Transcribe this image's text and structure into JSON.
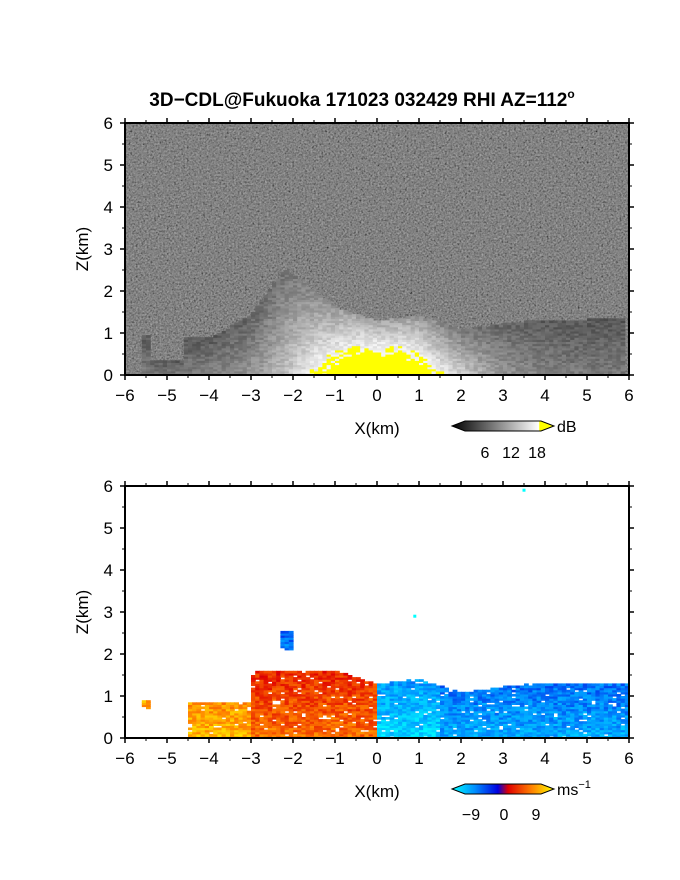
{
  "title": "3D−CDL@Fukuoka 171023 032429 RHI AZ=112",
  "title_superscript": "o",
  "chart_data": [
    {
      "type": "heatmap",
      "quantity": "SNR",
      "xlabel": "X(km)",
      "ylabel": "Z(km)",
      "xlim": [
        -6,
        6
      ],
      "ylim": [
        0,
        6
      ],
      "xticks": [
        "−6",
        "−5",
        "−4",
        "−3",
        "−2",
        "−1",
        "0",
        "1",
        "2",
        "3",
        "4",
        "5",
        "6"
      ],
      "yticks": [
        "0",
        "1",
        "2",
        "3",
        "4",
        "5",
        "6"
      ],
      "colorbar": {
        "unit": "dB",
        "ticks": [
          "6",
          "12",
          "18"
        ],
        "range": [
          0,
          21
        ],
        "colormap": "grayscale with yellow above 18",
        "saturation_color": "#ffff00"
      },
      "echo_top_km": [
        {
          "x": -5.6,
          "top": 0.95
        },
        {
          "x": -4,
          "top": 0.85
        },
        {
          "x": -3,
          "top": 1.4
        },
        {
          "x": -2.2,
          "top": 2.5
        },
        {
          "x": -1,
          "top": 1.6
        },
        {
          "x": 0,
          "top": 1.25
        },
        {
          "x": 1,
          "top": 1.4
        },
        {
          "x": 2,
          "top": 1.05
        },
        {
          "x": 3,
          "top": 1.2
        },
        {
          "x": 4,
          "top": 1.3
        },
        {
          "x": 5,
          "top": 1.3
        },
        {
          "x": 5.9,
          "top": 1.35
        }
      ]
    },
    {
      "type": "heatmap",
      "quantity": "radial velocity",
      "xlabel": "X(km)",
      "ylabel": "Z(km)",
      "xlim": [
        -6,
        6
      ],
      "ylim": [
        0,
        6
      ],
      "xticks": [
        "−6",
        "−5",
        "−4",
        "−3",
        "−2",
        "−1",
        "0",
        "1",
        "2",
        "3",
        "4",
        "5",
        "6"
      ],
      "yticks": [
        "0",
        "1",
        "2",
        "3",
        "4",
        "5",
        "6"
      ],
      "colorbar": {
        "unit": "ms",
        "unit_superscript": "−1",
        "ticks": [
          "−9",
          "0",
          "9"
        ],
        "range": [
          -12,
          12
        ],
        "colormap": "cyan-blue-red-orange-yellow"
      },
      "velocity_regions_ms": [
        {
          "x_range": [
            -5.6,
            -5.4
          ],
          "z_range": [
            0.7,
            0.9
          ],
          "velocity": 8
        },
        {
          "x_range": [
            -4.5,
            -3
          ],
          "z_range": [
            0,
            0.85
          ],
          "velocity": 7
        },
        {
          "x_range": [
            -3,
            0
          ],
          "z_range": [
            0,
            1.6
          ],
          "velocity": 4
        },
        {
          "x_range": [
            -2.3,
            -2
          ],
          "z_range": [
            2.1,
            2.5
          ],
          "velocity": -8
        },
        {
          "x_range": [
            0,
            1.5
          ],
          "z_range": [
            0,
            1.4
          ],
          "velocity": -8
        },
        {
          "x_range": [
            1.5,
            5.9
          ],
          "z_range": [
            0,
            1.3
          ],
          "velocity": -6
        }
      ],
      "isolated_points": [
        {
          "x": 0.9,
          "z": 2.9
        },
        {
          "x": 3.5,
          "z": 5.9
        }
      ]
    }
  ],
  "colors": {
    "background": "#ffffff",
    "axes": "#000000",
    "snr_saturated": "#ffff00"
  }
}
